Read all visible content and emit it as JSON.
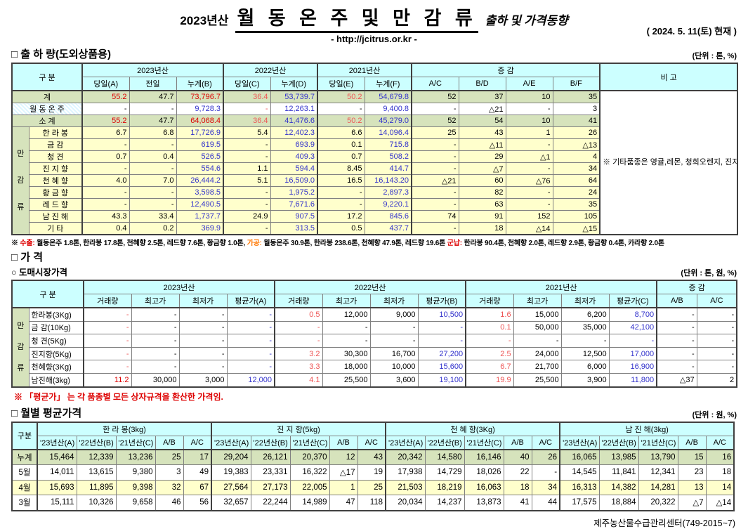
{
  "header": {
    "year": "2023년산",
    "title": "월 동 온 주 및 만 감 류",
    "subtitle": "출하 및 가격동향",
    "url": "- http://jcitrus.or.kr -",
    "asof": "( 2024.  5. 11(토) 현재 )"
  },
  "shipment": {
    "title": "□ 출 하 량(도외상품용)",
    "unit": "(단위 : 톤, %)",
    "gubun": "구      분",
    "years": [
      "2023년산",
      "2022년산",
      "2021년산"
    ],
    "change": "증      감",
    "bigo": "비 고",
    "cols": [
      "당일(A)",
      "전일",
      "누계(B)",
      "당일(C)",
      "누계(D)",
      "당일(E)",
      "누계(F)",
      "A/C",
      "B/D",
      "A/E",
      "B/F"
    ],
    "group": "만감류",
    "note": "※ 기타품종은 영귤,레몬, 청희오렌지, 진지휘, 진귤, 만다린, 블러드오렌지, 폰깡,세미놀, 하루미 등 임.",
    "rows": [
      {
        "label": "계",
        "type": "sum",
        "cells": [
          "55.2",
          "47.7",
          "73,796.7",
          "36.4",
          "53,739.7",
          "50.2",
          "54,679.8",
          "52",
          "37",
          "10",
          "35"
        ]
      },
      {
        "label": "월 동 온 주",
        "type": "mid",
        "cells": [
          "-",
          "-",
          "9,728.3",
          "-",
          "12,263.1",
          "-",
          "9,400.8",
          "-",
          "△21",
          "-",
          "3"
        ]
      },
      {
        "label": "소      계",
        "type": "sum",
        "cells": [
          "55.2",
          "47.7",
          "64,068.4",
          "36.4",
          "41,476.6",
          "50.2",
          "45,279.0",
          "52",
          "54",
          "10",
          "41"
        ]
      },
      {
        "label": "한 라 봉",
        "type": "detail",
        "cells": [
          "6.7",
          "6.8",
          "17,726.9",
          "5.4",
          "12,402.3",
          "6.6",
          "14,096.4",
          "25",
          "43",
          "1",
          "26"
        ]
      },
      {
        "label": "금      감",
        "type": "detail",
        "cells": [
          "-",
          "-",
          "619.5",
          "-",
          "693.9",
          "0.1",
          "715.8",
          "-",
          "△11",
          "-",
          "△13"
        ]
      },
      {
        "label": "청      견",
        "type": "detail",
        "cells": [
          "0.7",
          "0.4",
          "526.5",
          "-",
          "409.3",
          "0.7",
          "508.2",
          "-",
          "29",
          "△1",
          "4"
        ]
      },
      {
        "label": "진 지 향",
        "type": "detail",
        "cells": [
          "-",
          "-",
          "554.6",
          "1.1",
          "594.4",
          "8.45",
          "414.7",
          "-",
          "△7",
          "-",
          "34"
        ]
      },
      {
        "label": "천 혜 향",
        "type": "detail",
        "cells": [
          "4.0",
          "7.0",
          "26,444.2",
          "5.1",
          "16,509.0",
          "16.5",
          "16,143.20",
          "△21",
          "60",
          "△76",
          "64"
        ]
      },
      {
        "label": "황 금 향",
        "type": "detail",
        "cells": [
          "-",
          "-",
          "3,598.5",
          "-",
          "1,975.2",
          "-",
          "2,897.3",
          "-",
          "82",
          "-",
          "24"
        ]
      },
      {
        "label": "레 드 향",
        "type": "detail",
        "cells": [
          "-",
          "-",
          "12,490.5",
          "-",
          "7,671.6",
          "-",
          "9,220.1",
          "-",
          "63",
          "-",
          "35"
        ]
      },
      {
        "label": "남 진 해",
        "type": "detail",
        "cells": [
          "43.3",
          "33.4",
          "1,737.7",
          "24.9",
          "907.5",
          "17.2",
          "845.6",
          "74",
          "91",
          "152",
          "105"
        ]
      },
      {
        "label": "기      타",
        "type": "detail",
        "cells": [
          "0.4",
          "0.2",
          "369.9",
          "-",
          "313.5",
          "0.5",
          "437.7",
          "-",
          "18",
          "△14",
          "△15"
        ]
      }
    ],
    "footnote": [
      {
        "text": "※ ",
        "color": "k"
      },
      {
        "text": "수출:",
        "color": "r"
      },
      {
        "text": " 월동온주 1.8톤, 한라봉 17.8톤, 천혜향 2.5톤, 레드향 7.6톤, 황금향 1.0톤, ",
        "color": "k"
      },
      {
        "text": "가공:",
        "color": "o"
      },
      {
        "text": " 월동온주 30.9톤, 한라봉 238.6톤, 천혜향 47.9톤, 레드향 19.6톤 ",
        "color": "k"
      },
      {
        "text": "군납:",
        "color": "r"
      },
      {
        "text": " 한라봉 90.4톤, 천혜향 2.0톤, 레드향 2.9톤, 황금향 0.4톤, 카라향 2.0톤",
        "color": "k"
      }
    ]
  },
  "price": {
    "title": "□ 가      격",
    "sub": "○ 도매시장가격",
    "unit": "(단위 : 톤, 원, %)",
    "gubun": "구      분",
    "years": [
      "2023년산",
      "2022년산",
      "2021년산"
    ],
    "change": "증   감",
    "cols": [
      "거래량",
      "최고가",
      "최저가",
      "평균가(A)",
      "거래량",
      "최고가",
      "최저가",
      "평균가(B)",
      "거래량",
      "최고가",
      "최저가",
      "평균가(C)",
      "A/B",
      "A/C"
    ],
    "group": "만감류",
    "rows": [
      {
        "label": "한라봉(3Kg)",
        "emph": false,
        "cells": [
          "-",
          "-",
          "-",
          "-",
          "0.5",
          "12,000",
          "9,000",
          "10,500",
          "1.6",
          "15,000",
          "6,200",
          "8,700",
          "-",
          "-"
        ]
      },
      {
        "label": "금 감(10Kg)",
        "emph": false,
        "cells": [
          "-",
          "-",
          "-",
          "-",
          "-",
          "-",
          "-",
          "-",
          "0.1",
          "50,000",
          "35,000",
          "42,100",
          "-",
          "-"
        ]
      },
      {
        "label": "청   견(5Kg)",
        "emph": false,
        "cells": [
          "-",
          "-",
          "-",
          "-",
          "-",
          "-",
          "-",
          "-",
          "-",
          "-",
          "-",
          "-",
          "-",
          "-"
        ]
      },
      {
        "label": "진지향(5Kg)",
        "emph": false,
        "cells": [
          "-",
          "-",
          "-",
          "-",
          "3.2",
          "30,300",
          "16,700",
          "27,200",
          "2.5",
          "24,000",
          "12,500",
          "17,000",
          "-",
          "-"
        ]
      },
      {
        "label": "천혜향(3Kg)",
        "emph": false,
        "cells": [
          "-",
          "-",
          "-",
          "-",
          "3.3",
          "18,000",
          "10,000",
          "15,600",
          "6.7",
          "21,700",
          "6,000",
          "16,900",
          "-",
          "-"
        ]
      },
      {
        "label": "남진해(3kg)",
        "emph": true,
        "cells": [
          "11.2",
          "30,000",
          "3,000",
          "12,000",
          "4.1",
          "25,500",
          "3,600",
          "19,100",
          "19.9",
          "25,500",
          "3,900",
          "11,800",
          "△37",
          "2"
        ]
      }
    ],
    "footnote": "※  「평균가」 는 각 품종별 모든 상자규격을 환산한 가격임."
  },
  "monthly": {
    "title": "□ 월별 평균가격",
    "unit": "(단위 : 원, %)",
    "gubun": "구분",
    "groups": [
      "한  라  봉(3kg)",
      "진 지 향(5kg)",
      "천 혜 향(3Kg)",
      "남 진 해(3kg)"
    ],
    "cols": [
      "'23년산(A)",
      "'22년산(B)",
      "'21년산(C)",
      "A/B",
      "A/C"
    ],
    "rows": [
      {
        "label": "누계",
        "type": "sum",
        "cells": [
          "15,464",
          "12,339",
          "13,236",
          "25",
          "17",
          "29,204",
          "26,121",
          "20,370",
          "12",
          "43",
          "20,342",
          "14,580",
          "16,146",
          "40",
          "26",
          "16,065",
          "13,985",
          "13,790",
          "15",
          "16"
        ]
      },
      {
        "label": "5월",
        "type": "plain",
        "cells": [
          "14,011",
          "13,615",
          "9,380",
          "3",
          "49",
          "19,383",
          "23,331",
          "16,322",
          "△17",
          "19",
          "17,938",
          "14,729",
          "18,026",
          "22",
          "-",
          "14,545",
          "11,841",
          "12,341",
          "23",
          "18"
        ]
      },
      {
        "label": "4월",
        "type": "alt",
        "cells": [
          "15,693",
          "11,895",
          "9,398",
          "32",
          "67",
          "27,564",
          "27,173",
          "22,005",
          "1",
          "25",
          "21,503",
          "18,219",
          "16,063",
          "18",
          "34",
          "16,313",
          "14,382",
          "14,281",
          "13",
          "14"
        ]
      },
      {
        "label": "3월",
        "type": "plain",
        "cells": [
          "15,111",
          "10,326",
          "9,658",
          "46",
          "56",
          "32,657",
          "22,244",
          "14,989",
          "47",
          "118",
          "20,034",
          "14,237",
          "13,873",
          "41",
          "44",
          "17,575",
          "18,884",
          "20,322",
          "△7",
          "△14"
        ]
      }
    ]
  },
  "footer": "제주농산물수급관리센터(749-2015~7)"
}
